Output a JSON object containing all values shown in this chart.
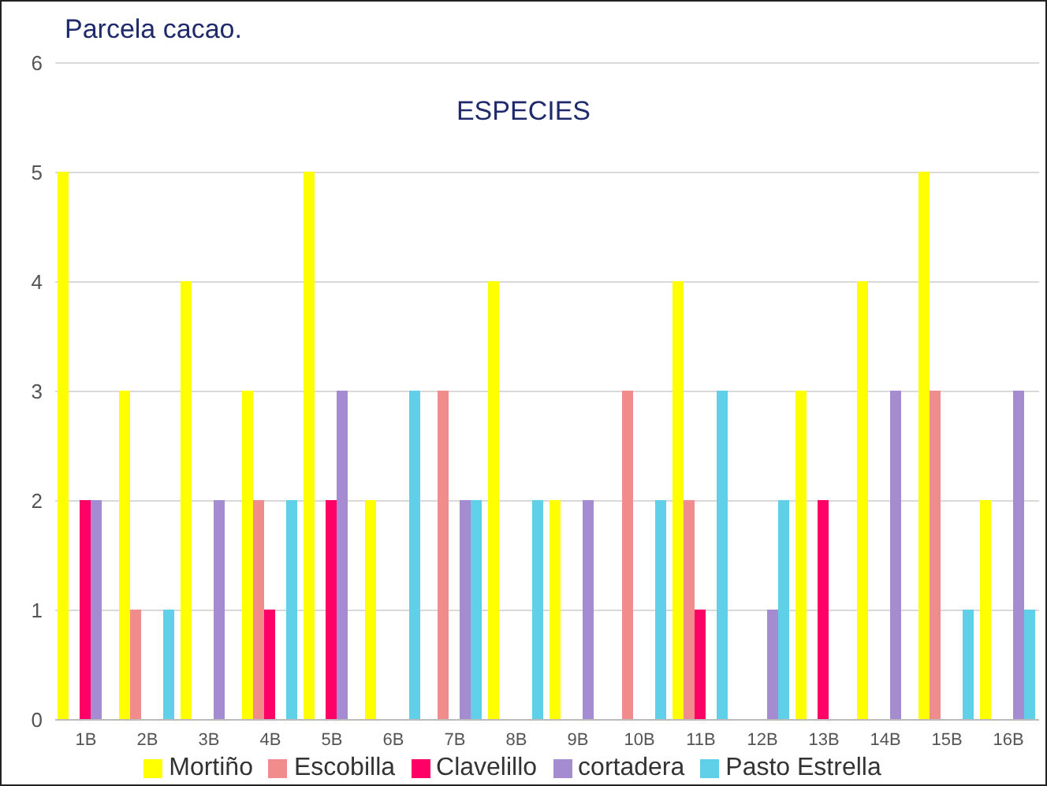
{
  "chart_data": {
    "type": "bar",
    "title": "Parcela cacao.",
    "subtitle": "ESPECIES",
    "categories": [
      "1B",
      "2B",
      "3B",
      "4B",
      "5B",
      "6B",
      "7B",
      "8B",
      "9B",
      "10B",
      "11B",
      "12B",
      "13B",
      "14B",
      "15B",
      "16B"
    ],
    "series": [
      {
        "name": "Mortiño",
        "color": "#ffff00",
        "values": [
          5,
          3,
          4,
          3,
          5,
          2,
          0,
          4,
          2,
          0,
          4,
          0,
          3,
          4,
          5,
          2
        ]
      },
      {
        "name": "Escobilla",
        "color": "#f08c8c",
        "values": [
          0,
          1,
          0,
          2,
          0,
          0,
          3,
          0,
          0,
          3,
          2,
          0,
          0,
          0,
          3,
          0
        ]
      },
      {
        "name": "Clavelillo",
        "color": "#ff0066",
        "values": [
          2,
          0,
          0,
          1,
          2,
          0,
          0,
          0,
          0,
          0,
          1,
          0,
          2,
          0,
          0,
          0
        ]
      },
      {
        "name": "cortadera",
        "color": "#a58bd0",
        "values": [
          2,
          0,
          2,
          0,
          3,
          0,
          2,
          0,
          2,
          0,
          0,
          1,
          0,
          3,
          0,
          3
        ]
      },
      {
        "name": "Pasto Estrella",
        "color": "#5fd0e8",
        "values": [
          0,
          1,
          0,
          2,
          0,
          3,
          2,
          2,
          0,
          2,
          3,
          2,
          0,
          0,
          1,
          1
        ]
      }
    ],
    "ylim": [
      0,
      6
    ],
    "yticks": [
      0,
      1,
      2,
      3,
      4,
      5,
      6
    ],
    "grid": "y",
    "legend": "bottom"
  }
}
